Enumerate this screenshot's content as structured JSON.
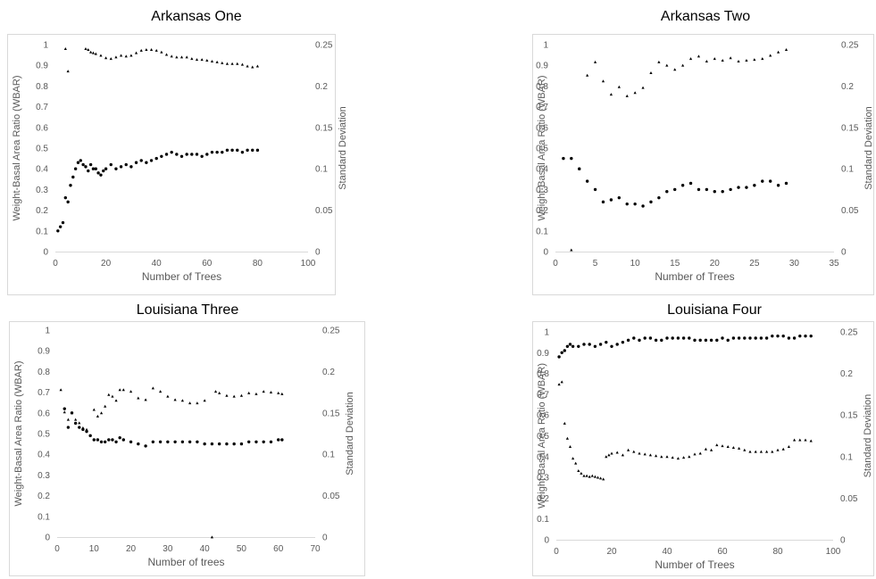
{
  "chart_data": [
    {
      "type": "scatter",
      "title": "Arkansas One",
      "xlabel": "Number of Trees",
      "ylabel": "Weight-Basal Area Ratio (WBAR)",
      "y2label": "Standard Deviation",
      "xlim": [
        0,
        100
      ],
      "ylim": [
        0,
        1
      ],
      "y2lim": [
        0,
        0.25
      ],
      "xticks": [
        "0",
        "20",
        "40",
        "60",
        "80",
        "100"
      ],
      "yticks": [
        "0",
        "0.1",
        "0.2",
        "0.3",
        "0.4",
        "0.5",
        "0.6",
        "0.7",
        "0.8",
        "0.9",
        "1"
      ],
      "y2ticks": [
        "0",
        "0.05",
        "0.1",
        "0.15",
        "0.2",
        "0.25"
      ],
      "series": [
        {
          "axis": "left",
          "x": [
            1,
            2,
            3,
            4,
            5,
            6,
            7,
            8,
            9,
            10,
            11,
            12,
            13,
            14,
            15,
            16,
            17,
            18,
            19,
            20,
            22,
            24,
            26,
            28,
            30,
            32,
            34,
            36,
            38,
            40,
            42,
            44,
            46,
            48,
            50,
            52,
            54,
            56,
            58,
            60,
            62,
            64,
            66,
            68,
            70,
            72,
            74,
            76,
            78,
            80
          ],
          "y": [
            0.1,
            0.12,
            0.14,
            0.26,
            0.24,
            0.32,
            0.36,
            0.4,
            0.43,
            0.44,
            0.42,
            0.41,
            0.39,
            0.42,
            0.4,
            0.4,
            0.38,
            0.37,
            0.39,
            0.4,
            0.42,
            0.4,
            0.41,
            0.42,
            0.41,
            0.43,
            0.44,
            0.43,
            0.44,
            0.45,
            0.46,
            0.47,
            0.48,
            0.47,
            0.46,
            0.47,
            0.47,
            0.47,
            0.46,
            0.47,
            0.48,
            0.48,
            0.48,
            0.49,
            0.49,
            0.49,
            0.48,
            0.49,
            0.49,
            0.49
          ]
        },
        {
          "axis": "right",
          "x": [
            4,
            5,
            12,
            13,
            14,
            15,
            16,
            18,
            20,
            22,
            24,
            26,
            28,
            30,
            32,
            34,
            36,
            38,
            40,
            42,
            44,
            46,
            48,
            50,
            52,
            54,
            56,
            58,
            60,
            62,
            64,
            66,
            68,
            70,
            72,
            74,
            76,
            78,
            80
          ],
          "y": [
            0.245,
            0.218,
            0.245,
            0.244,
            0.241,
            0.24,
            0.239,
            0.237,
            0.234,
            0.233,
            0.235,
            0.237,
            0.236,
            0.237,
            0.24,
            0.243,
            0.244,
            0.244,
            0.243,
            0.241,
            0.238,
            0.236,
            0.235,
            0.235,
            0.235,
            0.233,
            0.232,
            0.232,
            0.231,
            0.23,
            0.229,
            0.228,
            0.227,
            0.227,
            0.227,
            0.226,
            0.224,
            0.223,
            0.224
          ]
        }
      ]
    },
    {
      "type": "scatter",
      "title": "Arkansas Two",
      "xlabel": "Number of Trees",
      "ylabel": "Weight-Basal Area Ratio (WBAR)",
      "y2label": "Standard Deviation",
      "xlim": [
        0,
        35
      ],
      "ylim": [
        0,
        1
      ],
      "y2lim": [
        0,
        0.25
      ],
      "xticks": [
        "0",
        "5",
        "10",
        "15",
        "20",
        "25",
        "30",
        "35"
      ],
      "yticks": [
        "0",
        "0.1",
        "0.2",
        "0.3",
        "0.4",
        "0.5",
        "0.6",
        "0.7",
        "0.8",
        "0.9",
        "1"
      ],
      "y2ticks": [
        "0",
        "0.05",
        "0.1",
        "0.15",
        "0.2",
        "0.25"
      ],
      "series": [
        {
          "axis": "left",
          "x": [
            1,
            2,
            3,
            4,
            5,
            6,
            7,
            8,
            9,
            10,
            11,
            12,
            13,
            14,
            15,
            16,
            17,
            18,
            19,
            20,
            21,
            22,
            23,
            24,
            25,
            26,
            27,
            28,
            29
          ],
          "y": [
            0.45,
            0.45,
            0.4,
            0.34,
            0.3,
            0.24,
            0.25,
            0.26,
            0.23,
            0.23,
            0.22,
            0.24,
            0.26,
            0.29,
            0.3,
            0.32,
            0.33,
            0.3,
            0.3,
            0.29,
            0.29,
            0.3,
            0.31,
            0.31,
            0.32,
            0.34,
            0.34,
            0.32,
            0.33
          ]
        },
        {
          "axis": "right",
          "x": [
            2,
            3,
            4,
            5,
            6,
            7,
            8,
            9,
            10,
            11,
            12,
            13,
            14,
            15,
            16,
            17,
            18,
            19,
            20,
            21,
            22,
            23,
            24,
            25,
            26,
            27,
            28,
            29
          ],
          "y": [
            0.002,
            0.1,
            0.213,
            0.229,
            0.206,
            0.19,
            0.199,
            0.188,
            0.192,
            0.198,
            0.216,
            0.229,
            0.225,
            0.22,
            0.225,
            0.233,
            0.236,
            0.23,
            0.233,
            0.231,
            0.234,
            0.23,
            0.231,
            0.232,
            0.233,
            0.237,
            0.241,
            0.244
          ]
        }
      ]
    },
    {
      "type": "scatter",
      "title": "Louisiana Three",
      "xlabel": "Number of trees",
      "ylabel": "Weight-Basal Area Ratio (WBAR)",
      "y2label": "Standard Deviation",
      "xlim": [
        0,
        70
      ],
      "ylim": [
        0,
        1
      ],
      "y2lim": [
        0,
        0.25
      ],
      "xticks": [
        "0",
        "10",
        "20",
        "30",
        "40",
        "50",
        "60",
        "70"
      ],
      "yticks": [
        "0",
        "0.1",
        "0.2",
        "0.3",
        "0.4",
        "0.5",
        "0.6",
        "0.7",
        "0.8",
        "0.9",
        "1"
      ],
      "y2ticks": [
        "0",
        "0.05",
        "0.1",
        "0.15",
        "0.2",
        "0.25"
      ],
      "series": [
        {
          "axis": "left",
          "x": [
            2,
            3,
            4,
            5,
            6,
            7,
            8,
            9,
            10,
            11,
            12,
            13,
            14,
            15,
            16,
            17,
            18,
            20,
            22,
            24,
            26,
            28,
            30,
            32,
            34,
            36,
            38,
            40,
            42,
            44,
            46,
            48,
            50,
            52,
            54,
            56,
            58,
            60,
            61
          ],
          "y": [
            0.62,
            0.53,
            0.6,
            0.55,
            0.53,
            0.52,
            0.51,
            0.49,
            0.47,
            0.47,
            0.46,
            0.46,
            0.47,
            0.47,
            0.46,
            0.48,
            0.47,
            0.46,
            0.45,
            0.44,
            0.46,
            0.46,
            0.46,
            0.46,
            0.46,
            0.46,
            0.46,
            0.45,
            0.45,
            0.45,
            0.45,
            0.45,
            0.45,
            0.46,
            0.46,
            0.46,
            0.46,
            0.47,
            0.47
          ]
        },
        {
          "axis": "right",
          "x": [
            1,
            2,
            3,
            4,
            5,
            6,
            7,
            8,
            10,
            11,
            12,
            13,
            14,
            15,
            16,
            17,
            18,
            20,
            22,
            24,
            26,
            28,
            30,
            32,
            34,
            36,
            38,
            40,
            42,
            43,
            44,
            46,
            48,
            50,
            52,
            54,
            56,
            58,
            60,
            61
          ],
          "y": [
            0.178,
            0.151,
            0.142,
            0.15,
            0.142,
            0.138,
            0.132,
            0.13,
            0.154,
            0.146,
            0.15,
            0.158,
            0.172,
            0.17,
            0.165,
            0.178,
            0.178,
            0.176,
            0.168,
            0.166,
            0.18,
            0.176,
            0.17,
            0.166,
            0.165,
            0.162,
            0.162,
            0.165,
            0.0,
            0.176,
            0.174,
            0.171,
            0.17,
            0.171,
            0.174,
            0.173,
            0.176,
            0.175,
            0.174,
            0.173
          ]
        }
      ]
    },
    {
      "type": "scatter",
      "title": "Louisiana Four",
      "xlabel": "Number of Trees",
      "ylabel": "Weight-Basal Area Ratio (WBAR)",
      "y2label": "Standard Deviation",
      "xlim": [
        0,
        100
      ],
      "ylim": [
        0,
        1
      ],
      "y2lim": [
        0,
        0.25
      ],
      "xticks": [
        "0",
        "20",
        "40",
        "60",
        "80",
        "100"
      ],
      "yticks": [
        "0",
        "0.1",
        "0.2",
        "0.3",
        "0.4",
        "0.5",
        "0.6",
        "0.7",
        "0.8",
        "0.9",
        "1"
      ],
      "y2ticks": [
        "0",
        "0.05",
        "0.1",
        "0.15",
        "0.2",
        "0.25"
      ],
      "series": [
        {
          "axis": "left",
          "x": [
            1,
            2,
            3,
            4,
            5,
            6,
            8,
            10,
            12,
            14,
            16,
            18,
            20,
            22,
            24,
            26,
            28,
            30,
            32,
            34,
            36,
            38,
            40,
            42,
            44,
            46,
            48,
            50,
            52,
            54,
            56,
            58,
            60,
            62,
            64,
            66,
            68,
            70,
            72,
            74,
            76,
            78,
            80,
            82,
            84,
            86,
            88,
            90,
            92
          ],
          "y": [
            0.88,
            0.9,
            0.91,
            0.93,
            0.94,
            0.93,
            0.93,
            0.94,
            0.94,
            0.93,
            0.94,
            0.95,
            0.93,
            0.94,
            0.95,
            0.96,
            0.97,
            0.96,
            0.97,
            0.97,
            0.96,
            0.96,
            0.97,
            0.97,
            0.97,
            0.97,
            0.97,
            0.96,
            0.96,
            0.96,
            0.96,
            0.96,
            0.97,
            0.96,
            0.97,
            0.97,
            0.97,
            0.97,
            0.97,
            0.97,
            0.97,
            0.98,
            0.98,
            0.98,
            0.97,
            0.97,
            0.98,
            0.98,
            0.98
          ]
        },
        {
          "axis": "right",
          "x": [
            1,
            2,
            3,
            4,
            5,
            6,
            7,
            8,
            9,
            10,
            11,
            12,
            13,
            14,
            15,
            16,
            17,
            18,
            19,
            20,
            22,
            24,
            26,
            28,
            30,
            32,
            34,
            36,
            38,
            40,
            42,
            44,
            46,
            48,
            50,
            52,
            54,
            56,
            58,
            60,
            62,
            64,
            66,
            68,
            70,
            72,
            74,
            76,
            78,
            80,
            82,
            84,
            86,
            88,
            90,
            92
          ],
          "y": [
            0.187,
            0.19,
            0.14,
            0.122,
            0.112,
            0.098,
            0.092,
            0.083,
            0.08,
            0.077,
            0.077,
            0.076,
            0.077,
            0.076,
            0.075,
            0.074,
            0.073,
            0.1,
            0.102,
            0.104,
            0.105,
            0.102,
            0.108,
            0.106,
            0.104,
            0.103,
            0.102,
            0.101,
            0.1,
            0.1,
            0.099,
            0.098,
            0.099,
            0.1,
            0.103,
            0.104,
            0.109,
            0.108,
            0.114,
            0.113,
            0.112,
            0.111,
            0.11,
            0.108,
            0.106,
            0.106,
            0.106,
            0.106,
            0.106,
            0.108,
            0.109,
            0.112,
            0.12,
            0.12,
            0.12,
            0.119
          ]
        }
      ]
    }
  ]
}
